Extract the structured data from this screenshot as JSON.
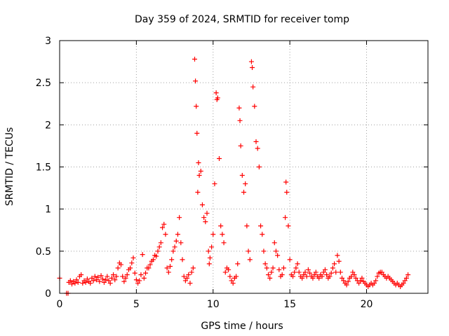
{
  "chart_data": {
    "type": "scatter",
    "title": "Day 359 of 2024, SRMTID for receiver tomp",
    "xlabel": "GPS time / hours",
    "ylabel": "SRMTID / TECUs",
    "xlim": [
      0,
      24
    ],
    "ylim": [
      0,
      3
    ],
    "xticks": [
      0,
      5,
      10,
      15,
      20
    ],
    "yticks": [
      0,
      0.5,
      1,
      1.5,
      2,
      2.5,
      3
    ],
    "xtick_labels": [
      "0",
      "5",
      "10",
      "15",
      "20"
    ],
    "ytick_labels": [
      "0",
      "0.5",
      "1",
      "1.5",
      "2",
      "2.5",
      "3"
    ],
    "grid": true,
    "marker": "+",
    "color": "#ff0000",
    "series": [
      {
        "name": "SRMTID",
        "points": [
          [
            0.0,
            0.18
          ],
          [
            0.45,
            0.0
          ],
          [
            0.55,
            0.0
          ],
          [
            0.6,
            0.13
          ],
          [
            0.7,
            0.15
          ],
          [
            0.8,
            0.11
          ],
          [
            0.9,
            0.14
          ],
          [
            1.0,
            0.12
          ],
          [
            1.1,
            0.16
          ],
          [
            1.2,
            0.13
          ],
          [
            1.3,
            0.2
          ],
          [
            1.4,
            0.22
          ],
          [
            1.5,
            0.12
          ],
          [
            1.6,
            0.15
          ],
          [
            1.7,
            0.13
          ],
          [
            1.8,
            0.17
          ],
          [
            1.9,
            0.14
          ],
          [
            2.0,
            0.12
          ],
          [
            2.1,
            0.18
          ],
          [
            2.2,
            0.15
          ],
          [
            2.3,
            0.2
          ],
          [
            2.4,
            0.16
          ],
          [
            2.5,
            0.19
          ],
          [
            2.6,
            0.14
          ],
          [
            2.7,
            0.21
          ],
          [
            2.8,
            0.17
          ],
          [
            2.9,
            0.13
          ],
          [
            3.0,
            0.16
          ],
          [
            3.1,
            0.2
          ],
          [
            3.2,
            0.15
          ],
          [
            3.3,
            0.12
          ],
          [
            3.4,
            0.18
          ],
          [
            3.5,
            0.22
          ],
          [
            3.6,
            0.16
          ],
          [
            3.7,
            0.2
          ],
          [
            3.8,
            0.3
          ],
          [
            3.9,
            0.36
          ],
          [
            4.0,
            0.34
          ],
          [
            4.1,
            0.2
          ],
          [
            4.2,
            0.14
          ],
          [
            4.3,
            0.18
          ],
          [
            4.4,
            0.22
          ],
          [
            4.5,
            0.28
          ],
          [
            4.6,
            0.3
          ],
          [
            4.7,
            0.36
          ],
          [
            4.8,
            0.42
          ],
          [
            4.9,
            0.24
          ],
          [
            5.0,
            0.16
          ],
          [
            5.1,
            0.12
          ],
          [
            5.2,
            0.15
          ],
          [
            5.3,
            0.22
          ],
          [
            5.4,
            0.46
          ],
          [
            5.5,
            0.18
          ],
          [
            5.6,
            0.24
          ],
          [
            5.7,
            0.3
          ],
          [
            5.8,
            0.3
          ],
          [
            5.9,
            0.34
          ],
          [
            6.0,
            0.38
          ],
          [
            6.1,
            0.4
          ],
          [
            6.2,
            0.45
          ],
          [
            6.3,
            0.44
          ],
          [
            6.4,
            0.5
          ],
          [
            6.5,
            0.55
          ],
          [
            6.6,
            0.6
          ],
          [
            6.7,
            0.78
          ],
          [
            6.8,
            0.82
          ],
          [
            6.9,
            0.7
          ],
          [
            7.0,
            0.3
          ],
          [
            7.1,
            0.25
          ],
          [
            7.2,
            0.32
          ],
          [
            7.3,
            0.4
          ],
          [
            7.4,
            0.5
          ],
          [
            7.5,
            0.55
          ],
          [
            7.6,
            0.62
          ],
          [
            7.7,
            0.7
          ],
          [
            7.8,
            0.9
          ],
          [
            7.9,
            0.6
          ],
          [
            8.0,
            0.4
          ],
          [
            8.1,
            0.2
          ],
          [
            8.2,
            0.15
          ],
          [
            8.3,
            0.18
          ],
          [
            8.4,
            0.22
          ],
          [
            8.5,
            0.12
          ],
          [
            8.6,
            0.25
          ],
          [
            8.7,
            0.3
          ],
          [
            8.8,
            2.78
          ],
          [
            8.85,
            2.52
          ],
          [
            8.9,
            2.22
          ],
          [
            8.95,
            1.9
          ],
          [
            9.0,
            1.2
          ],
          [
            9.05,
            1.55
          ],
          [
            9.1,
            1.4
          ],
          [
            9.2,
            1.45
          ],
          [
            9.3,
            1.05
          ],
          [
            9.4,
            0.9
          ],
          [
            9.5,
            0.85
          ],
          [
            9.6,
            0.95
          ],
          [
            9.7,
            0.5
          ],
          [
            9.75,
            0.35
          ],
          [
            9.8,
            0.42
          ],
          [
            9.9,
            0.55
          ],
          [
            10.0,
            0.7
          ],
          [
            10.1,
            1.3
          ],
          [
            10.2,
            2.38
          ],
          [
            10.25,
            2.3
          ],
          [
            10.3,
            2.32
          ],
          [
            10.4,
            1.6
          ],
          [
            10.5,
            0.8
          ],
          [
            10.6,
            0.7
          ],
          [
            10.7,
            0.6
          ],
          [
            10.8,
            0.25
          ],
          [
            10.9,
            0.3
          ],
          [
            11.0,
            0.28
          ],
          [
            11.1,
            0.2
          ],
          [
            11.2,
            0.15
          ],
          [
            11.3,
            0.12
          ],
          [
            11.4,
            0.18
          ],
          [
            11.5,
            0.2
          ],
          [
            11.6,
            0.35
          ],
          [
            11.7,
            2.2
          ],
          [
            11.75,
            2.05
          ],
          [
            11.8,
            1.75
          ],
          [
            11.9,
            1.4
          ],
          [
            12.0,
            1.2
          ],
          [
            12.1,
            1.3
          ],
          [
            12.2,
            0.8
          ],
          [
            12.3,
            0.5
          ],
          [
            12.4,
            0.4
          ],
          [
            12.5,
            2.75
          ],
          [
            12.55,
            2.68
          ],
          [
            12.6,
            2.45
          ],
          [
            12.7,
            2.22
          ],
          [
            12.8,
            1.8
          ],
          [
            12.9,
            1.72
          ],
          [
            13.0,
            1.5
          ],
          [
            13.1,
            0.8
          ],
          [
            13.2,
            0.7
          ],
          [
            13.3,
            0.5
          ],
          [
            13.4,
            0.35
          ],
          [
            13.5,
            0.3
          ],
          [
            13.6,
            0.22
          ],
          [
            13.7,
            0.18
          ],
          [
            13.8,
            0.25
          ],
          [
            13.9,
            0.3
          ],
          [
            14.0,
            0.6
          ],
          [
            14.1,
            0.5
          ],
          [
            14.2,
            0.45
          ],
          [
            14.3,
            0.28
          ],
          [
            14.4,
            0.2
          ],
          [
            14.5,
            0.22
          ],
          [
            14.6,
            0.3
          ],
          [
            14.7,
            0.9
          ],
          [
            14.75,
            1.32
          ],
          [
            14.8,
            1.2
          ],
          [
            14.9,
            0.8
          ],
          [
            15.0,
            0.4
          ],
          [
            15.1,
            0.22
          ],
          [
            15.2,
            0.2
          ],
          [
            15.3,
            0.25
          ],
          [
            15.4,
            0.3
          ],
          [
            15.5,
            0.35
          ],
          [
            15.6,
            0.25
          ],
          [
            15.7,
            0.2
          ],
          [
            15.8,
            0.18
          ],
          [
            15.9,
            0.22
          ],
          [
            16.0,
            0.25
          ],
          [
            16.1,
            0.2
          ],
          [
            16.2,
            0.28
          ],
          [
            16.3,
            0.24
          ],
          [
            16.4,
            0.2
          ],
          [
            16.5,
            0.18
          ],
          [
            16.6,
            0.22
          ],
          [
            16.7,
            0.25
          ],
          [
            16.8,
            0.2
          ],
          [
            16.9,
            0.18
          ],
          [
            17.0,
            0.22
          ],
          [
            17.1,
            0.2
          ],
          [
            17.2,
            0.25
          ],
          [
            17.3,
            0.28
          ],
          [
            17.4,
            0.22
          ],
          [
            17.5,
            0.18
          ],
          [
            17.6,
            0.2
          ],
          [
            17.7,
            0.24
          ],
          [
            17.8,
            0.3
          ],
          [
            17.9,
            0.35
          ],
          [
            18.0,
            0.25
          ],
          [
            18.1,
            0.45
          ],
          [
            18.2,
            0.38
          ],
          [
            18.3,
            0.25
          ],
          [
            18.4,
            0.18
          ],
          [
            18.5,
            0.15
          ],
          [
            18.6,
            0.12
          ],
          [
            18.7,
            0.1
          ],
          [
            18.8,
            0.14
          ],
          [
            18.9,
            0.18
          ],
          [
            19.0,
            0.2
          ],
          [
            19.1,
            0.25
          ],
          [
            19.2,
            0.22
          ],
          [
            19.3,
            0.18
          ],
          [
            19.4,
            0.15
          ],
          [
            19.5,
            0.12
          ],
          [
            19.6,
            0.15
          ],
          [
            19.7,
            0.18
          ],
          [
            19.8,
            0.14
          ],
          [
            19.9,
            0.12
          ],
          [
            20.0,
            0.1
          ],
          [
            20.1,
            0.08
          ],
          [
            20.2,
            0.1
          ],
          [
            20.3,
            0.12
          ],
          [
            20.4,
            0.1
          ],
          [
            20.5,
            0.12
          ],
          [
            20.6,
            0.15
          ],
          [
            20.7,
            0.2
          ],
          [
            20.8,
            0.24
          ],
          [
            20.9,
            0.25
          ],
          [
            21.0,
            0.25
          ],
          [
            21.1,
            0.22
          ],
          [
            21.2,
            0.2
          ],
          [
            21.3,
            0.18
          ],
          [
            21.4,
            0.2
          ],
          [
            21.5,
            0.18
          ],
          [
            21.6,
            0.16
          ],
          [
            21.7,
            0.14
          ],
          [
            21.8,
            0.12
          ],
          [
            21.9,
            0.1
          ],
          [
            22.0,
            0.12
          ],
          [
            22.1,
            0.1
          ],
          [
            22.2,
            0.08
          ],
          [
            22.3,
            0.1
          ],
          [
            22.4,
            0.12
          ],
          [
            22.5,
            0.15
          ],
          [
            22.6,
            0.18
          ],
          [
            22.7,
            0.22
          ]
        ]
      }
    ]
  }
}
